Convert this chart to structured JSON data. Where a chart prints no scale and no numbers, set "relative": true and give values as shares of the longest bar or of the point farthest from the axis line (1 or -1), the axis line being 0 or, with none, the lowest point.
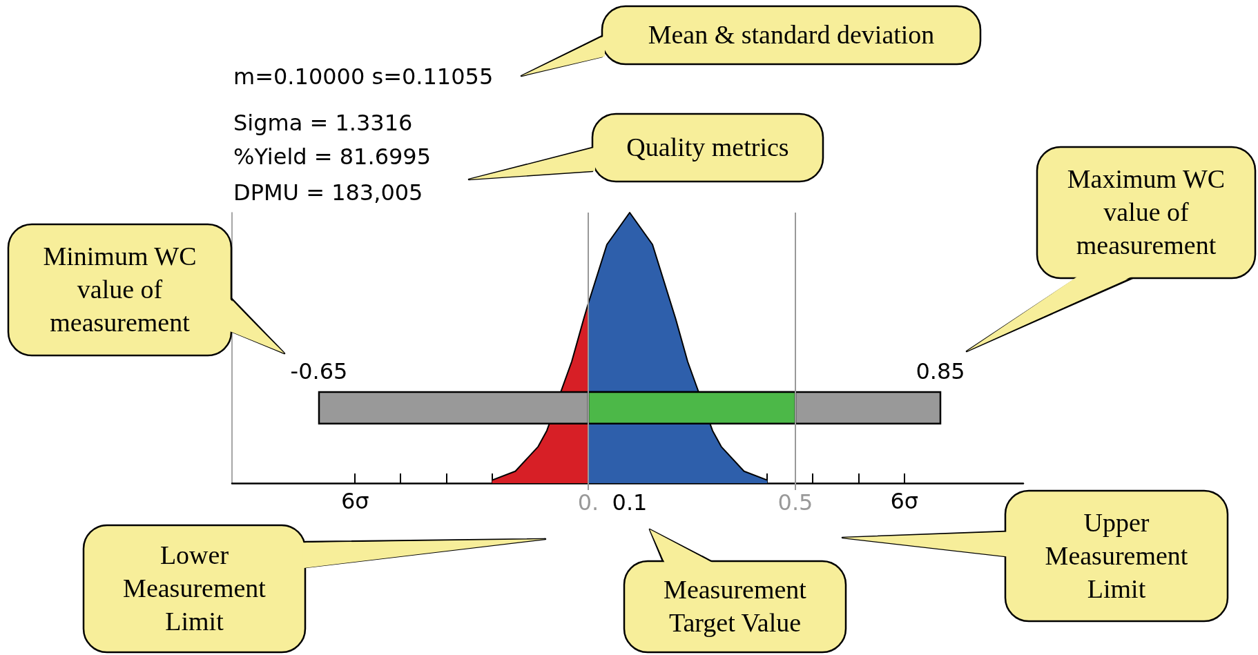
{
  "chart_data": {
    "type": "area",
    "relative": true,
    "xlim": [
      -0.86,
      1.05
    ],
    "xticks": [
      {
        "value": -0.563,
        "label": null
      },
      {
        "value": -0.453,
        "label": null
      },
      {
        "value": -0.342,
        "label": null
      },
      {
        "value": -0.232,
        "label": null
      },
      {
        "value": -0.121,
        "label": null
      },
      {
        "value": -0.011,
        "label": null
      },
      {
        "value": 0,
        "label": "0."
      },
      0.1,
      {
        "value": 0.211,
        "label": null
      },
      {
        "value": 0.321,
        "label": null
      },
      {
        "value": 0.432,
        "label": null
      },
      0.5,
      {
        "value": 0.542,
        "label": null
      },
      {
        "value": 0.653,
        "label": null
      },
      {
        "value": 0.763,
        "label": null
      }
    ],
    "series": [
      {
        "color": "#d71f26",
        "x": [
          -0.232,
          -0.176,
          -0.121,
          -0.1,
          -0.04,
          -0.011,
          0
        ],
        "values": [
          0.011,
          0.044,
          0.135,
          0.194,
          0.449,
          0.607,
          0.664
        ]
      },
      {
        "color": "#2e5fab",
        "x": [
          0,
          0.045,
          0.1,
          0.155,
          0.211,
          0.24,
          0.3,
          0.321,
          0.376,
          0.432
        ],
        "values": [
          0.664,
          0.882,
          1,
          0.882,
          0.607,
          0.449,
          0.194,
          0.135,
          0.044,
          0.011
        ]
      }
    ],
    "bands": [
      {
        "axis": "x",
        "from": -0.65,
        "to": 0.85,
        "color": "#999999"
      },
      {
        "axis": "x",
        "from": 0,
        "to": 0.5,
        "color": "#4cb848"
      }
    ],
    "ref_lines": [
      {
        "axis": "x",
        "value": 0,
        "color": "#999999"
      },
      {
        "axis": "x",
        "value": 0.5,
        "color": "#999999"
      }
    ],
    "annotations": [
      "m=0.10000 s=0.11055",
      "Sigma  = 1.3316",
      "%Yield = 81.6995",
      "DPMU   = 183,005",
      "Mean & standard deviation",
      "Quality metrics",
      "Maximum WC\nvalue of\nmeasurement",
      "Minimum WC\nvalue of\nmeasurement",
      "Lower\nMeasurement\nLimit",
      "Measurement\nTarget Value",
      "Upper\nMeasurement\nLimit",
      "-0.65",
      "0.85",
      "6σ",
      "6σ"
    ]
  }
}
